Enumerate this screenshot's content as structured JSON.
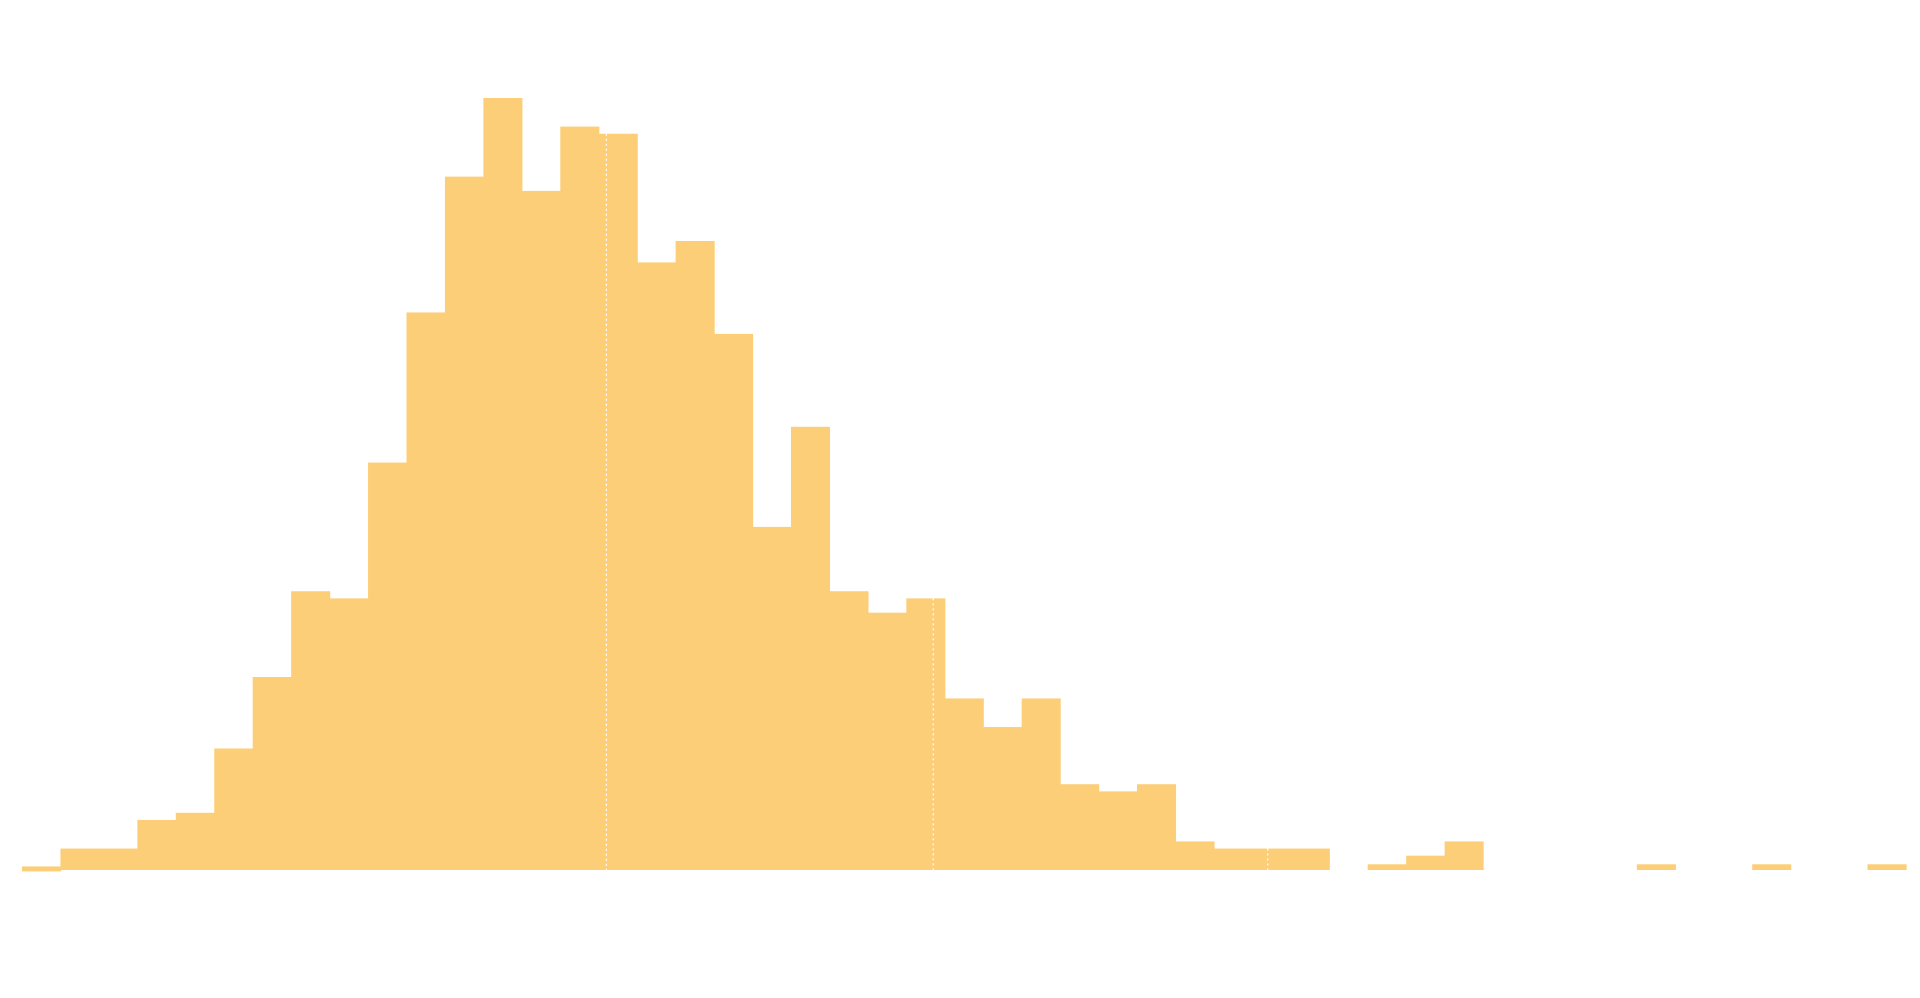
{
  "colors": {
    "bar": "#fdce78",
    "reference_line": "#ffffff",
    "background": "#ffffff"
  },
  "chart_data": {
    "type": "bar",
    "subtype": "histogram",
    "title": "",
    "xlabel": "",
    "ylabel": "",
    "grid": false,
    "legend": "none",
    "axes_visible": false,
    "bin_count": 49,
    "x_range": [
      0,
      49
    ],
    "ylim": [
      0,
      110
    ],
    "values": [
      0.5,
      3,
      3,
      7,
      8,
      17,
      27,
      39,
      38,
      57,
      78,
      97,
      108,
      95,
      104,
      103,
      85,
      88,
      75,
      48,
      62,
      39,
      36,
      38,
      24,
      20,
      24,
      12,
      11,
      12,
      4,
      3,
      3,
      3,
      0,
      0.8,
      2,
      4,
      0,
      0,
      0,
      0,
      0.8,
      0,
      0,
      0.8,
      0,
      0,
      0.8
    ],
    "reference_lines_x": [
      15.2,
      23.7,
      32.4
    ]
  }
}
